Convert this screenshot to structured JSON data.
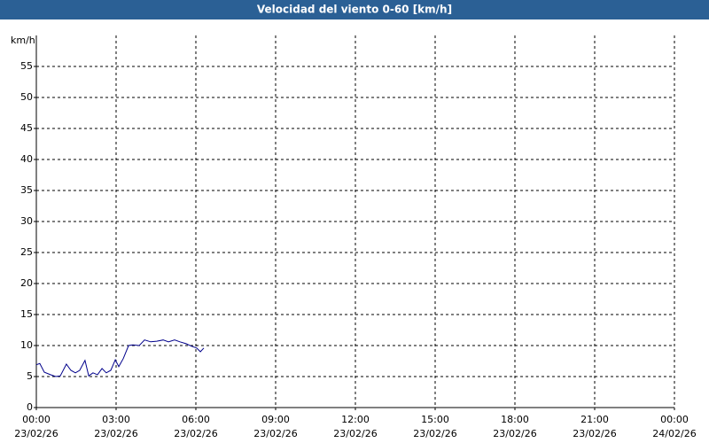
{
  "chart_data": {
    "type": "line",
    "title": "Velocidad del viento 0-60 [km/h]",
    "y_label": "km/h",
    "x": [
      0.0,
      0.13,
      0.3,
      0.53,
      0.73,
      0.9,
      1.13,
      1.3,
      1.47,
      1.63,
      1.83,
      1.97,
      2.13,
      2.3,
      2.47,
      2.63,
      2.8,
      2.97,
      3.1,
      3.27,
      3.47,
      3.63,
      3.87,
      4.07,
      4.3,
      4.53,
      4.77,
      4.97,
      5.2,
      5.4,
      5.63,
      5.83,
      6.03,
      6.17,
      6.3
    ],
    "series": [
      {
        "name": "Velocidad del viento",
        "color": "#00008b",
        "values": [
          6.9,
          7.1,
          5.7,
          5.3,
          5.0,
          5.1,
          7.0,
          6.0,
          5.6,
          6.0,
          7.6,
          5.1,
          5.6,
          5.3,
          6.3,
          5.6,
          6.0,
          7.7,
          6.6,
          7.9,
          10.0,
          10.1,
          10.0,
          10.9,
          10.6,
          10.7,
          10.9,
          10.6,
          10.9,
          10.6,
          10.3,
          9.9,
          9.6,
          9.0,
          9.6
        ]
      }
    ],
    "xlim": [
      0,
      24
    ],
    "xticks": [
      {
        "value": 0,
        "label": "00:00"
      },
      {
        "value": 3,
        "label": "03:00"
      },
      {
        "value": 6,
        "label": "06:00"
      },
      {
        "value": 9,
        "label": "09:00"
      },
      {
        "value": 12,
        "label": "12:00"
      },
      {
        "value": 15,
        "label": "15:00"
      },
      {
        "value": 18,
        "label": "18:00"
      },
      {
        "value": 21,
        "label": "21:00"
      },
      {
        "value": 24,
        "label": "00:00"
      }
    ],
    "xtick_dates": [
      "23/02/26",
      "23/02/26",
      "23/02/26",
      "23/02/26",
      "23/02/26",
      "23/02/26",
      "23/02/26",
      "23/02/26",
      "24/02/26"
    ],
    "ylim": [
      0,
      60
    ],
    "yticks": [
      0,
      5,
      10,
      15,
      20,
      25,
      30,
      35,
      40,
      45,
      50,
      55
    ],
    "grid": true
  }
}
